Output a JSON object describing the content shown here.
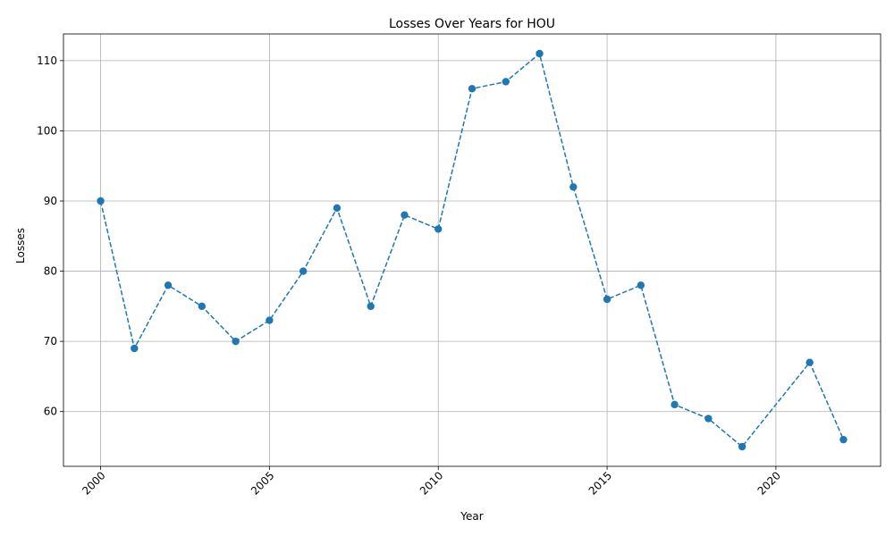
{
  "chart_data": {
    "type": "line",
    "title": "Losses Over Years for HOU",
    "xlabel": "Year",
    "ylabel": "Losses",
    "xlim": [
      1998.9,
      2023.1
    ],
    "ylim": [
      52.2,
      113.8
    ],
    "xticks": [
      2000,
      2005,
      2010,
      2015,
      2020
    ],
    "yticks": [
      60,
      70,
      80,
      90,
      100,
      110
    ],
    "grid": true,
    "line_style": "dashed",
    "marker": "circle",
    "color": "#1f77b4",
    "series": [
      {
        "x": [
          2000,
          2001,
          2002,
          2003,
          2004,
          2005,
          2006,
          2007,
          2008,
          2009,
          2010,
          2011,
          2012,
          2013,
          2014,
          2015,
          2016,
          2017,
          2018,
          2019,
          2021,
          2022
        ],
        "values": [
          90,
          69,
          78,
          75,
          70,
          73,
          80,
          89,
          75,
          88,
          86,
          106,
          107,
          111,
          92,
          76,
          78,
          61,
          59,
          55,
          67,
          56
        ]
      }
    ]
  }
}
